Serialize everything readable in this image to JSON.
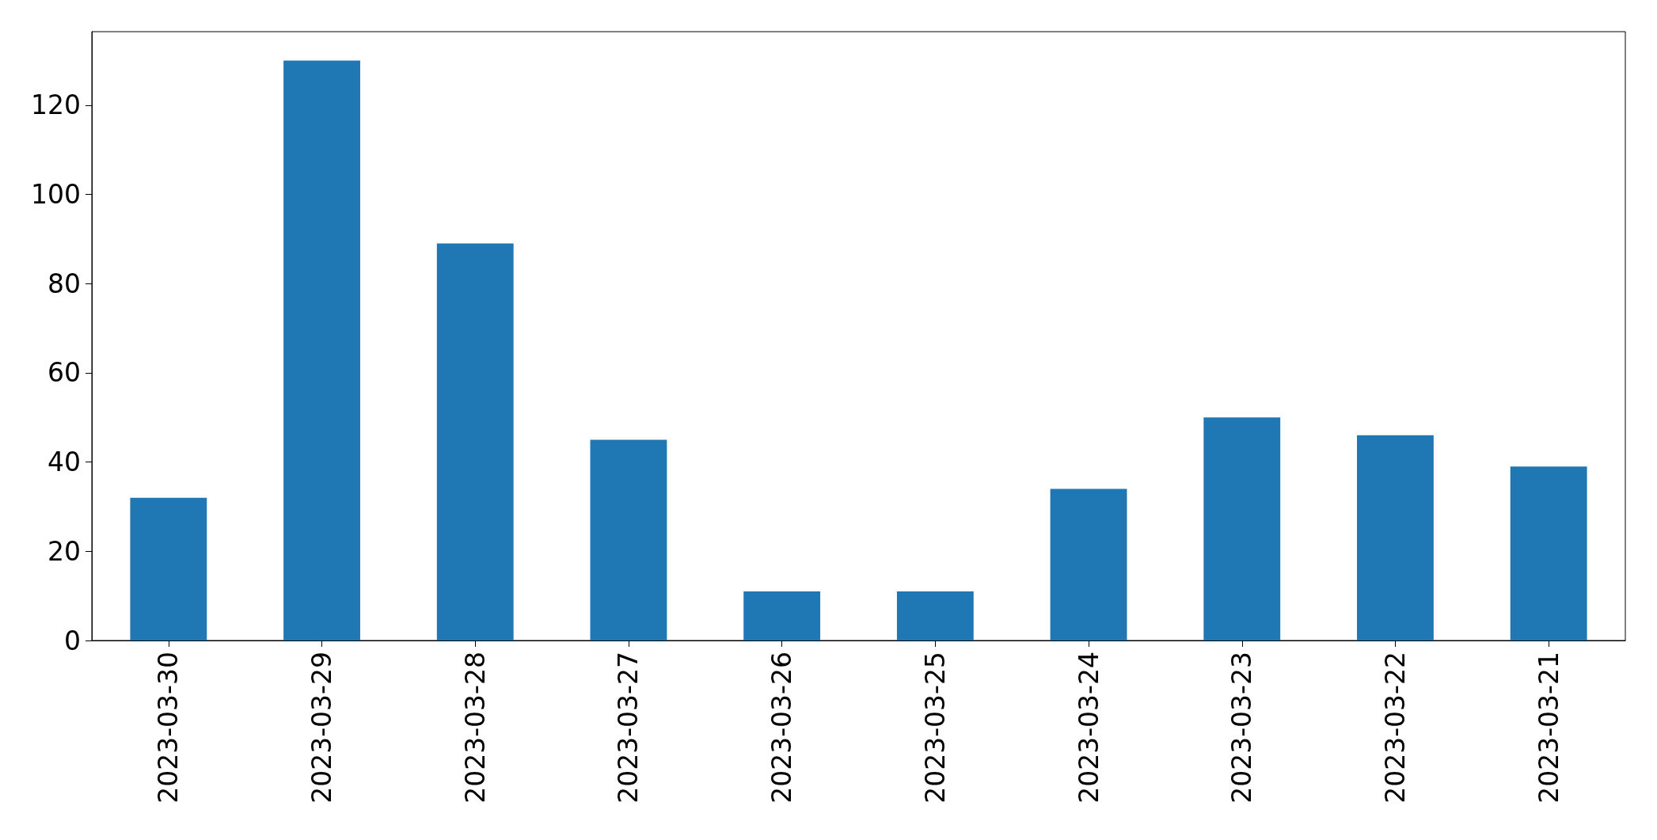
{
  "chart_data": {
    "type": "bar",
    "categories": [
      "2023-03-30",
      "2023-03-29",
      "2023-03-28",
      "2023-03-27",
      "2023-03-26",
      "2023-03-25",
      "2023-03-24",
      "2023-03-23",
      "2023-03-22",
      "2023-03-21"
    ],
    "values": [
      32,
      130,
      89,
      45,
      11,
      11,
      34,
      50,
      46,
      39
    ],
    "color": "#1f77b4",
    "ylim": [
      0,
      136.5
    ],
    "yticks": [
      0,
      20,
      40,
      60,
      80,
      100,
      120
    ],
    "grid": false
  }
}
